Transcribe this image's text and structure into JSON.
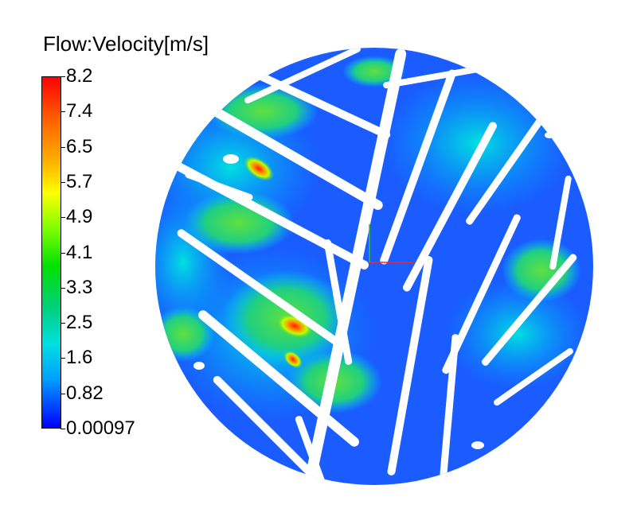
{
  "legend": {
    "title": "Flow:Velocity[m/s]",
    "ticks": [
      "8.2",
      "7.4",
      "6.5",
      "5.7",
      "4.9",
      "4.1",
      "3.3",
      "2.5",
      "1.6",
      "0.82",
      "0.00097"
    ],
    "colors": [
      "#ff0000",
      "#ff5000",
      "#ffa000",
      "#ffff00",
      "#80ff00",
      "#00e000",
      "#00d090",
      "#00e0e0",
      "#00a0ff",
      "#0050ff",
      "#0000ff"
    ]
  },
  "field": {
    "low_color": "#1a5cff",
    "mid_color": "#00c8ff",
    "high_color": "#40d040",
    "hot_color": "#ff2000",
    "gap_color": "#ffffff"
  }
}
